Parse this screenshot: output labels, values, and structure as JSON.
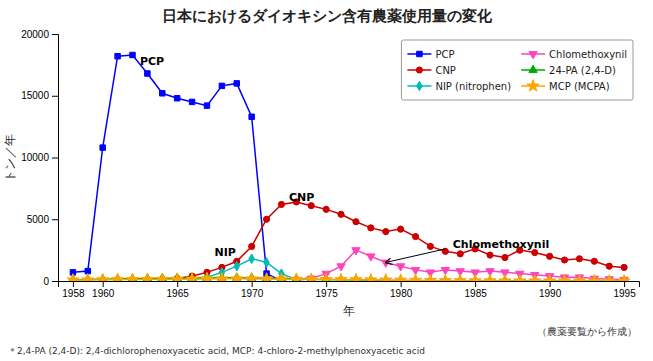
{
  "chart_data": {
    "type": "line",
    "title": "日本におけるダイオキシン含有農薬使用量の変化",
    "x_label": "年",
    "y_label": "トン／年",
    "xlim": [
      1957,
      1996
    ],
    "ylim": [
      0,
      20000
    ],
    "xticks": [
      1958,
      1960,
      1965,
      1970,
      1975,
      1980,
      1985,
      1990,
      1995
    ],
    "yticks": [
      0,
      5000,
      10000,
      15000,
      20000
    ],
    "grid": false,
    "legend": "upper right",
    "series": [
      {
        "name": "PCP",
        "color": "#0000FF",
        "marker": "square",
        "x": [
          1958,
          1959,
          1960,
          1961,
          1962,
          1963,
          1964,
          1965,
          1966,
          1967,
          1968,
          1969,
          1970,
          1971,
          1972
        ],
        "values": [
          700,
          800,
          10800,
          18200,
          18300,
          16800,
          15200,
          14800,
          14500,
          14200,
          15800,
          16000,
          13300,
          600,
          0
        ]
      },
      {
        "name": "CNP",
        "color": "#CC0000",
        "marker": "circle",
        "x": [
          1965,
          1966,
          1967,
          1968,
          1969,
          1970,
          1971,
          1972,
          1973,
          1974,
          1975,
          1976,
          1977,
          1978,
          1979,
          1980,
          1981,
          1982,
          1983,
          1984,
          1985,
          1986,
          1987,
          1988,
          1989,
          1990,
          1991,
          1992,
          1993,
          1994,
          1995
        ],
        "values": [
          200,
          400,
          700,
          1100,
          1600,
          2800,
          5000,
          6200,
          6400,
          6100,
          5800,
          5400,
          4800,
          4300,
          4000,
          4200,
          3600,
          2800,
          2400,
          2200,
          2600,
          2100,
          1900,
          2500,
          2300,
          2000,
          1700,
          1800,
          1600,
          1200,
          1100
        ]
      },
      {
        "name": "NIP (nitrophen)",
        "color": "#00BBBB",
        "marker": "diamond",
        "x": [
          1966,
          1967,
          1968,
          1969,
          1970,
          1971,
          1972,
          1973
        ],
        "values": [
          100,
          300,
          700,
          1200,
          1800,
          1500,
          600,
          100
        ]
      },
      {
        "name": "Chlomethoxynil",
        "color": "#FF44BB",
        "marker": "triangle-down",
        "x": [
          1973,
          1974,
          1975,
          1976,
          1977,
          1978,
          1979,
          1980,
          1981,
          1982,
          1983,
          1984,
          1985,
          1986,
          1987,
          1988,
          1989,
          1990,
          1991,
          1992,
          1993,
          1994,
          1995
        ],
        "values": [
          50,
          200,
          600,
          1200,
          2500,
          2000,
          1500,
          1200,
          900,
          700,
          900,
          800,
          700,
          800,
          700,
          600,
          500,
          400,
          300,
          300,
          200,
          150,
          100
        ]
      },
      {
        "name": "24-PA (2,4-D)",
        "color": "#00AA00",
        "marker": "triangle-up",
        "x": [
          1958,
          1959,
          1960,
          1961,
          1962,
          1963,
          1964,
          1965,
          1966,
          1967,
          1968,
          1969,
          1970,
          1971,
          1972,
          1973,
          1974,
          1975,
          1976,
          1977,
          1978,
          1979,
          1980,
          1981,
          1982,
          1983,
          1984,
          1985,
          1986,
          1987,
          1988,
          1989,
          1990,
          1991,
          1992,
          1993,
          1994,
          1995
        ],
        "values": [
          100,
          120,
          150,
          160,
          180,
          200,
          220,
          230,
          240,
          250,
          260,
          260,
          250,
          230,
          200,
          170,
          150,
          130,
          100,
          80,
          60,
          50,
          40,
          30,
          20,
          15,
          10,
          10,
          10,
          8,
          6,
          5,
          4,
          3,
          3,
          2,
          2,
          2
        ]
      },
      {
        "name": "MCP (MCPA)",
        "color": "#FFA500",
        "marker": "star",
        "x": [
          1958,
          1959,
          1960,
          1961,
          1962,
          1963,
          1964,
          1965,
          1966,
          1967,
          1968,
          1969,
          1970,
          1971,
          1972,
          1973,
          1974,
          1975,
          1976,
          1977,
          1978,
          1979,
          1980,
          1981,
          1982,
          1983,
          1984,
          1985,
          1986,
          1987,
          1988,
          1989,
          1990,
          1991,
          1992,
          1993,
          1994,
          1995
        ],
        "values": [
          80,
          90,
          100,
          110,
          120,
          130,
          140,
          150,
          160,
          170,
          175,
          175,
          170,
          160,
          150,
          140,
          130,
          120,
          110,
          100,
          90,
          80,
          70,
          60,
          50,
          40,
          30,
          20,
          15,
          10,
          8,
          6,
          5,
          4,
          3,
          2,
          2,
          2
        ]
      }
    ],
    "annotations": [
      {
        "x": 1962.5,
        "y": 17500,
        "text": "PCP"
      },
      {
        "x": 1972.5,
        "y": 6500,
        "text": "CNP"
      },
      {
        "x": 1967.5,
        "y": 2050,
        "text": "NIP"
      },
      {
        "x": 1983.5,
        "y": 2700,
        "text": "Chlomethoxynil",
        "arrow_from": [
          1983,
          2600
        ],
        "arrow_to": [
          1979,
          1500
        ]
      }
    ],
    "footnotes": [
      "（農薬要覧から作成）",
      "＊2,4-PA (2,4-D): 2,4-dichlorophenoxyacetic acid,  MCP: 4-chloro-2-methylphenoxyacetic acid"
    ]
  }
}
